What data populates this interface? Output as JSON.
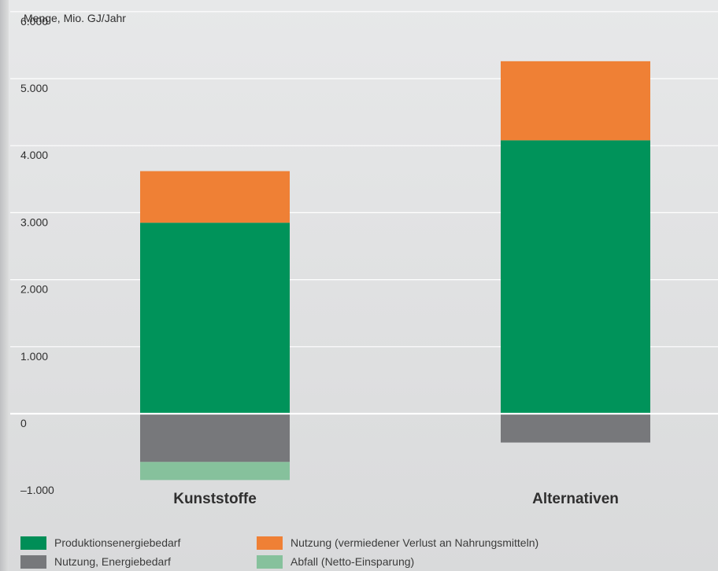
{
  "chart_data": {
    "type": "bar",
    "stacked": true,
    "ylabel": "Menge, Mio. GJ/Jahr",
    "ylim": [
      -1000,
      6000
    ],
    "yticks": [
      {
        "value": 6000,
        "label": "6.000"
      },
      {
        "value": 5000,
        "label": "5.000"
      },
      {
        "value": 4000,
        "label": "4.000"
      },
      {
        "value": 3000,
        "label": "3.000"
      },
      {
        "value": 2000,
        "label": "2.000"
      },
      {
        "value": 1000,
        "label": "1.000"
      },
      {
        "value": 0,
        "label": "0"
      },
      {
        "value": -1000,
        "label": "–1.000"
      }
    ],
    "categories": [
      "Kunststoffe",
      "Alternativen"
    ],
    "series": [
      {
        "name": "Produktionsenergiebedarf",
        "color": "#00935a",
        "values": [
          2850,
          4080
        ]
      },
      {
        "name": "Nutzung (vermiedener Verlust an Nahrungsmitteln)",
        "color": "#ef8035",
        "values": [
          770,
          1180
        ]
      },
      {
        "name": "Nutzung, Energiebedarf",
        "color": "#77787b",
        "values": [
          -720,
          -430
        ]
      },
      {
        "name": "Abfall (Netto-Einsparung)",
        "color": "#86c19c",
        "values": [
          -270,
          0
        ]
      }
    ],
    "grid": true,
    "legend_position": "bottom"
  }
}
